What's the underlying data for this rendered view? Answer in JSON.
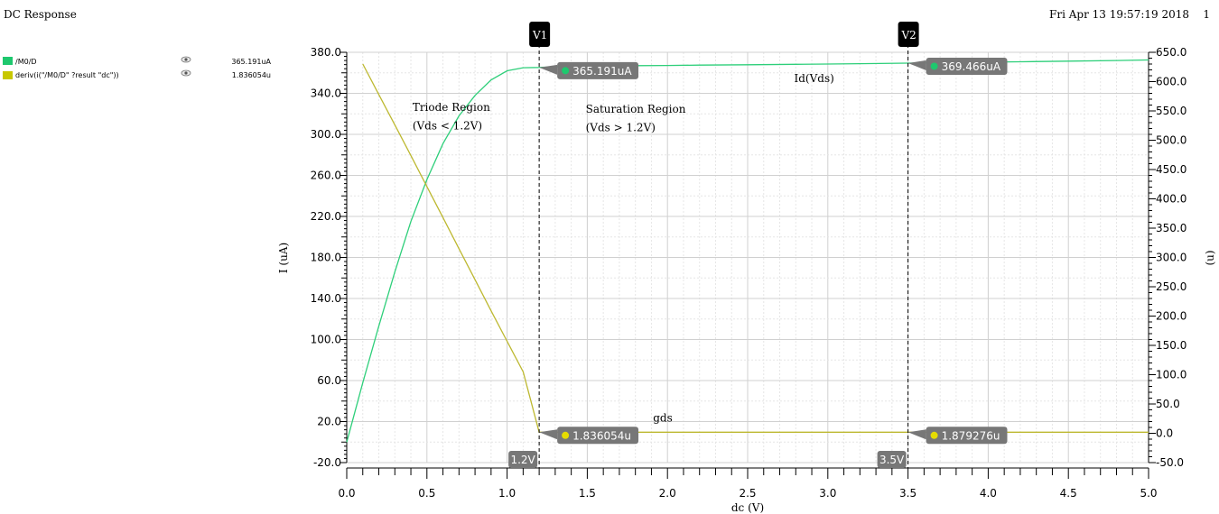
{
  "window": {
    "title": "DC Response",
    "timestamp": "Fri Apr 13 19:57:19 2018",
    "page": "1"
  },
  "legend": [
    {
      "label": "/M0/D",
      "value": "365.191uA",
      "color": "#1ec86e",
      "icon": "eye-icon"
    },
    {
      "label": "deriv(i(\"/M0/D\" ?result \"dc\"))",
      "value": "1.836054u",
      "color": "#c8c800",
      "icon": "eye-icon"
    }
  ],
  "chart_data": {
    "type": "line",
    "xlabel": "dc (V)",
    "ylabel_left": "I (uA)",
    "ylabel_right": "(u)",
    "xlim": [
      0,
      5.0
    ],
    "ylim_left": [
      -20,
      380
    ],
    "ylim_right": [
      -50,
      650
    ],
    "x_ticks": [
      "0.0",
      "0.5",
      "1.0",
      "1.5",
      "2.0",
      "2.5",
      "3.0",
      "3.5",
      "4.0",
      "4.5",
      "5.0"
    ],
    "y_left_ticks": [
      "-20.0",
      "20.0",
      "60.0",
      "100.0",
      "140.0",
      "180.0",
      "220.0",
      "260.0",
      "300.0",
      "340.0",
      "380.0"
    ],
    "y_right_ticks": [
      "-50.0",
      "0.0",
      "50.0",
      "100.0",
      "150.0",
      "200.0",
      "250.0",
      "300.0",
      "350.0",
      "400.0",
      "450.0",
      "500.0",
      "550.0",
      "600.0",
      "650.0"
    ],
    "grid": true,
    "series": [
      {
        "name": "/M0/D",
        "axis": "left",
        "color": "#2ecf7a",
        "x": [
          0.0,
          0.1,
          0.2,
          0.3,
          0.4,
          0.5,
          0.6,
          0.7,
          0.8,
          0.9,
          1.0,
          1.1,
          1.2,
          1.4,
          1.6,
          1.8,
          2.0,
          2.2,
          2.5,
          2.8,
          3.0,
          3.2,
          3.5,
          3.8,
          4.0,
          4.2,
          4.5,
          4.8,
          5.0
        ],
        "y": [
          0,
          58,
          113,
          166,
          215,
          256,
          291,
          318,
          338,
          353,
          362,
          365,
          365.191,
          366.5,
          366.8,
          367.0,
          367.2,
          367.5,
          367.9,
          368.3,
          368.6,
          368.9,
          369.466,
          370.0,
          370.4,
          370.8,
          371.4,
          372.0,
          372.5
        ]
      },
      {
        "name": "deriv(i(\"/M0/D\" ?result \"dc\"))",
        "axis": "right",
        "color": "#bdb830",
        "x": [
          0.1,
          0.2,
          0.3,
          0.4,
          0.5,
          0.6,
          0.7,
          0.8,
          0.9,
          1.0,
          1.1,
          1.2,
          1.5,
          2.0,
          2.5,
          3.0,
          3.5,
          4.0,
          4.5,
          5.0
        ],
        "y": [
          630,
          578,
          526,
          474,
          421,
          368,
          315,
          262,
          209,
          157,
          105,
          1.836054,
          1.84,
          1.85,
          1.86,
          1.87,
          1.879276,
          1.89,
          1.9,
          1.91
        ]
      }
    ],
    "markers": [
      {
        "name": "V1",
        "x": 1.2,
        "x_label": "1.2V"
      },
      {
        "name": "V2",
        "x": 3.5,
        "x_label": "3.5V"
      }
    ],
    "marker_readouts": [
      {
        "x": 1.2,
        "y": 365.191,
        "axis": "left",
        "label": "365.191uA",
        "color": "#1ec86e"
      },
      {
        "x": 1.2,
        "y": 1.836054,
        "axis": "right",
        "label": "1.836054u",
        "color": "#e6dc00"
      },
      {
        "x": 3.5,
        "y": 369.466,
        "axis": "left",
        "label": "369.466uA",
        "color": "#1ec86e"
      },
      {
        "x": 3.5,
        "y": 1.879276,
        "axis": "right",
        "label": "1.879276u",
        "color": "#e6dc00"
      }
    ],
    "annotations": [
      {
        "text": "Triode Region",
        "x": 0.41,
        "y_axis": "left",
        "y": 323
      },
      {
        "text": "(Vds < 1.2V)",
        "x": 0.41,
        "y_axis": "left",
        "y": 305
      },
      {
        "text": "Saturation Region",
        "x": 1.49,
        "y_axis": "left",
        "y": 321
      },
      {
        "text": "(Vds > 1.2V)",
        "x": 1.49,
        "y_axis": "left",
        "y": 303
      },
      {
        "text": "Id(Vds)",
        "x": 2.79,
        "y_axis": "left",
        "y": 351
      },
      {
        "text": "gds",
        "x": 1.91,
        "y_axis": "left",
        "y": 20
      }
    ]
  }
}
